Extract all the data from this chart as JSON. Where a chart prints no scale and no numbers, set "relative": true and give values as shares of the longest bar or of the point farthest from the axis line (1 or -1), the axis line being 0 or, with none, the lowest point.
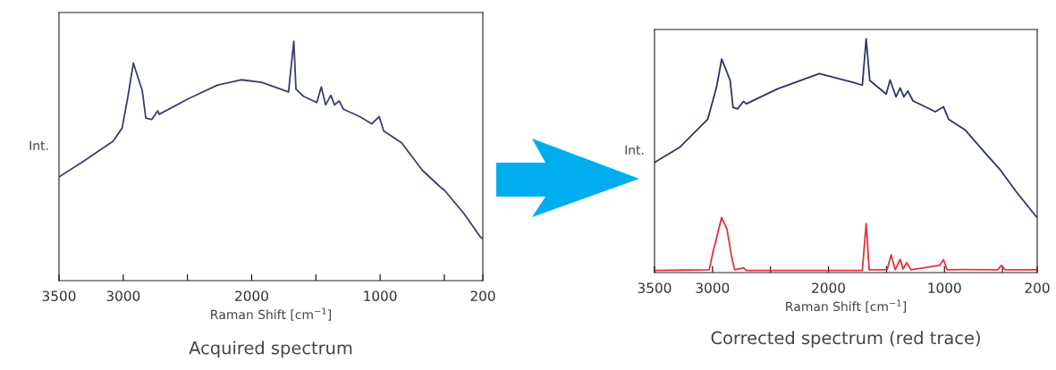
{
  "chart_data": [
    {
      "type": "line",
      "title": "Acquired spectrum",
      "xlabel": "Raman Shift [cm$^{−1}$]",
      "ylabel": "Int.",
      "relative": true,
      "tick_labels": "x",
      "grid": false,
      "marker": "none",
      "line_style": "solid",
      "xlim": [
        3500,
        200
      ],
      "xticks": [
        3500,
        3000,
        {
          "value": 2500,
          "label": null
        },
        2000,
        {
          "value": 1500,
          "label": null
        },
        1000,
        {
          "value": 500,
          "label": null
        },
        200
      ],
      "series": [
        {
          "color": "#3b3f6e",
          "x": [
            3500,
            3310,
            3079,
            3009,
            2963,
            2921,
            2882,
            2852,
            2824,
            2778,
            2731,
            2720,
            2500,
            2269,
            2083,
            1922,
            1713,
            1672,
            1655,
            1597,
            1493,
            1458,
            1424,
            1384,
            1354,
            1319,
            1285,
            1158,
            1065,
            1007,
            972,
            833,
            671,
            533,
            498,
            347,
            220,
            200
          ],
          "values": [
            0.433,
            0.498,
            0.582,
            0.637,
            0.77,
            0.909,
            0.843,
            0.794,
            0.679,
            0.673,
            0.709,
            0.695,
            0.758,
            0.816,
            0.839,
            0.828,
            0.788,
            1.0,
            0.8,
            0.77,
            0.744,
            0.809,
            0.734,
            0.774,
            0.734,
            0.751,
            0.716,
            0.685,
            0.655,
            0.685,
            0.625,
            0.576,
            0.461,
            0.392,
            0.377,
            0.28,
            0.183,
            0.175
          ]
        }
      ]
    },
    {
      "type": "line",
      "title": "Corrected spectrum (red trace)",
      "xlabel": "Raman Shift [cm$^{−1}$]",
      "ylabel": "Int.",
      "relative": true,
      "tick_labels": "x",
      "grid": false,
      "marker": "none",
      "line_style": "solid",
      "xlim": [
        3500,
        200
      ],
      "xticks": [
        3500,
        3000,
        {
          "value": 2500,
          "label": null
        },
        2000,
        {
          "value": 1500,
          "label": null
        },
        1000,
        {
          "value": 500,
          "label": null
        },
        200
      ],
      "series": [
        {
          "color": "#2e3566",
          "x": [
            3500,
            3285,
            3041,
            2964,
            2921,
            2887,
            2848,
            2823,
            2785,
            2733,
            2708,
            2438,
            2079,
            1797,
            1708,
            1675,
            1644,
            1502,
            1469,
            1418,
            1382,
            1350,
            1315,
            1272,
            1079,
            1008,
            964,
            823,
            644,
            515,
            387,
            213,
            200
          ],
          "values": [
            0.471,
            0.535,
            0.656,
            0.796,
            0.913,
            0.872,
            0.822,
            0.707,
            0.7,
            0.732,
            0.722,
            0.786,
            0.851,
            0.815,
            0.802,
            1.0,
            0.822,
            0.764,
            0.824,
            0.752,
            0.79,
            0.752,
            0.777,
            0.735,
            0.688,
            0.709,
            0.656,
            0.611,
            0.509,
            0.437,
            0.35,
            0.242,
            0.236
          ]
        },
        {
          "color": "#e8323c",
          "x": [
            3500,
            3028,
            2998,
            2921,
            2875,
            2836,
            2810,
            2733,
            2708,
            1708,
            1675,
            1649,
            1495,
            1459,
            1425,
            1382,
            1357,
            1325,
            1288,
            1041,
            1008,
            977,
            823,
            541,
            508,
            477,
            213,
            200
          ],
          "values": [
            0.009,
            0.012,
            0.083,
            0.236,
            0.185,
            0.07,
            0.012,
            0.02,
            0.009,
            0.009,
            0.21,
            0.012,
            0.012,
            0.076,
            0.012,
            0.057,
            0.015,
            0.042,
            0.012,
            0.031,
            0.055,
            0.012,
            0.013,
            0.012,
            0.031,
            0.012,
            0.012,
            0.012
          ]
        }
      ]
    }
  ]
}
